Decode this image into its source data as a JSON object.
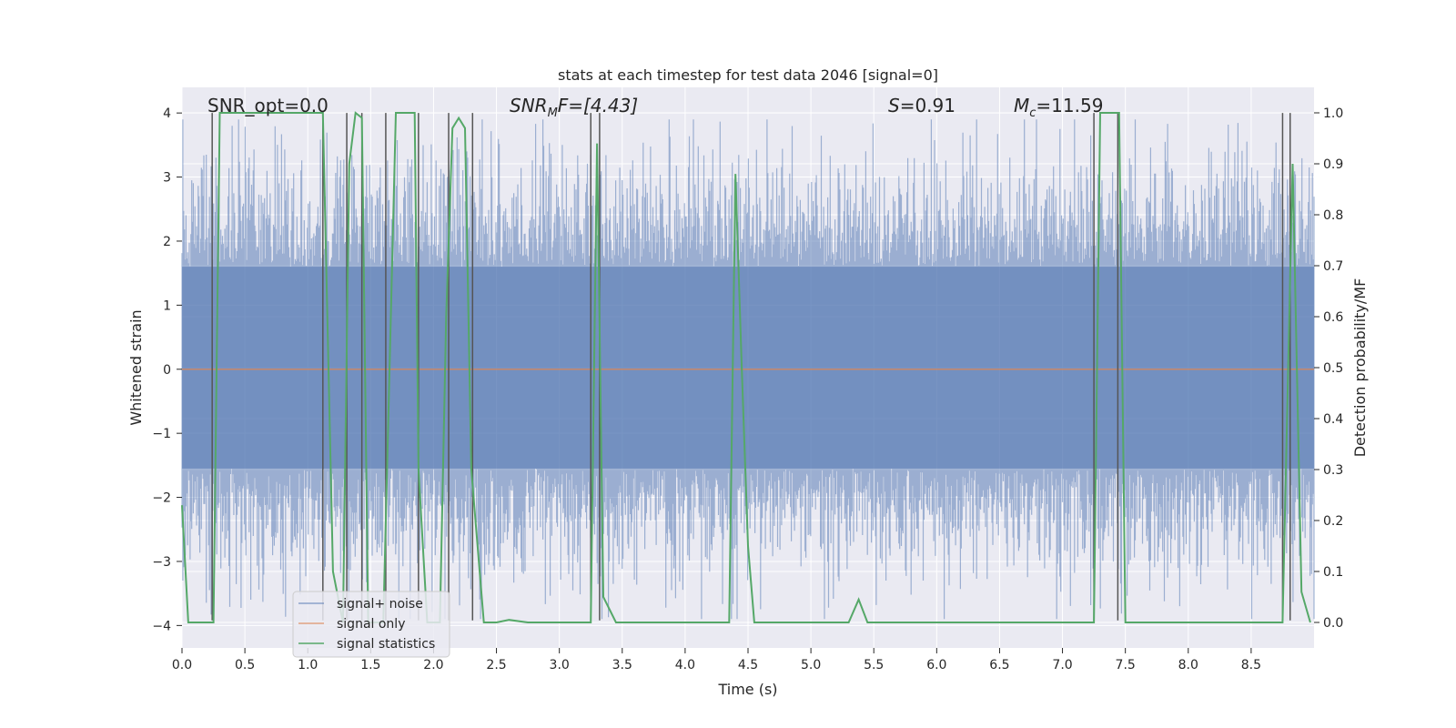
{
  "chart_data": {
    "type": "line",
    "title": "stats at each timestep for test data 2046 [signal=0]",
    "xlabel": "Time (s)",
    "ylabel_left": "Whitened strain",
    "ylabel_right": "Detection probability/MF",
    "xlim": [
      0.0,
      9.0
    ],
    "ylim_left": [
      -4.35,
      4.4
    ],
    "ylim_right": [
      -0.05,
      1.05
    ],
    "x_ticks": [
      0.0,
      0.5,
      1.0,
      1.5,
      2.0,
      2.5,
      3.0,
      3.5,
      4.0,
      4.5,
      5.0,
      5.5,
      6.0,
      6.5,
      7.0,
      7.5,
      8.0,
      8.5
    ],
    "x_tick_labels": [
      "0.0",
      "0.5",
      "1.0",
      "1.5",
      "2.0",
      "2.5",
      "3.0",
      "3.5",
      "4.0",
      "4.5",
      "5.0",
      "5.5",
      "6.0",
      "6.5",
      "7.0",
      "7.5",
      "8.0",
      "8.5"
    ],
    "y_ticks_left": [
      4,
      3,
      2,
      1,
      0,
      -1,
      -2,
      -3,
      -4
    ],
    "y_tick_labels_left": [
      "4",
      "3",
      "2",
      "1",
      "0",
      "−1",
      "−2",
      "−3",
      "−4"
    ],
    "y_ticks_right": [
      1.0,
      0.9,
      0.8,
      0.7,
      0.6,
      0.5,
      0.4,
      0.3,
      0.2,
      0.1,
      0.0
    ],
    "y_tick_labels_right": [
      "1.0",
      "0.9",
      "0.8",
      "0.7",
      "0.6",
      "0.5",
      "0.4",
      "0.3",
      "0.2",
      "0.1",
      "0.0"
    ],
    "annotations": {
      "snr_opt": "SNR_opt=0.0",
      "snr_mf_base": "SNR",
      "snr_mf_sub": "M",
      "snr_mf_rest": "F=[4.43]",
      "s_var": "S",
      "s_rest": "=0.91",
      "mc_var": "M",
      "mc_sub": "c",
      "mc_rest": "=11.59"
    },
    "legend": {
      "placement": "lower-left",
      "entries": [
        "signal+ noise",
        "signal only",
        "signal statistics"
      ]
    },
    "colors": {
      "noise": "#4c72b0",
      "signal": "#dd8452",
      "stats": "#55a868",
      "vlines": "#555555",
      "axes_bg": "#eaeaf2",
      "grid": "#ffffff"
    },
    "series": [
      {
        "name": "signal+ noise",
        "axis": "left",
        "description": "dense whitened strain time series, roughly Gaussian, std ~1, peaks ~±3.9",
        "amplitude_envelope": 3.6
      },
      {
        "name": "signal only",
        "axis": "left",
        "x": [
          0.0,
          9.0
        ],
        "y": [
          0.0,
          0.0
        ]
      },
      {
        "name": "signal statistics",
        "axis": "right",
        "x": [
          0.0,
          0.05,
          0.2,
          0.25,
          0.3,
          0.4,
          1.0,
          1.12,
          1.2,
          1.28,
          1.33,
          1.38,
          1.43,
          1.48,
          1.55,
          1.6,
          1.7,
          1.85,
          1.88,
          1.95,
          2.0,
          2.05,
          2.1,
          2.15,
          2.2,
          2.25,
          2.3,
          2.4,
          2.5,
          2.6,
          2.75,
          3.0,
          3.2,
          3.25,
          3.3,
          3.35,
          3.45,
          4.0,
          4.35,
          4.4,
          4.45,
          4.5,
          4.55,
          4.95,
          5.3,
          5.38,
          5.45,
          5.6,
          6.5,
          7.0,
          7.25,
          7.3,
          7.4,
          7.45,
          7.5,
          8.0,
          8.5,
          8.75,
          8.83,
          8.9,
          8.97
        ],
        "y": [
          0.23,
          0.0,
          0.0,
          0.0,
          1.0,
          1.0,
          1.0,
          1.0,
          0.1,
          0.0,
          0.9,
          1.0,
          0.99,
          0.0,
          0.0,
          0.0,
          1.0,
          1.0,
          0.3,
          0.0,
          0.0,
          0.0,
          0.6,
          0.97,
          0.99,
          0.97,
          0.3,
          0.0,
          0.0,
          0.005,
          0.0,
          0.0,
          0.0,
          0.0,
          0.94,
          0.05,
          0.0,
          0.0,
          0.0,
          0.88,
          0.5,
          0.15,
          0.0,
          0.0,
          0.0,
          0.045,
          0.0,
          0.0,
          0.0,
          0.0,
          0.0,
          1.0,
          1.0,
          1.0,
          0.0,
          0.0,
          0.0,
          0.0,
          0.9,
          0.06,
          0.0
        ]
      }
    ],
    "vertical_lines_x": [
      0.24,
      1.12,
      1.31,
      1.43,
      1.62,
      1.88,
      2.12,
      2.31,
      3.25,
      3.32,
      7.25,
      7.44,
      8.75,
      8.81
    ]
  }
}
